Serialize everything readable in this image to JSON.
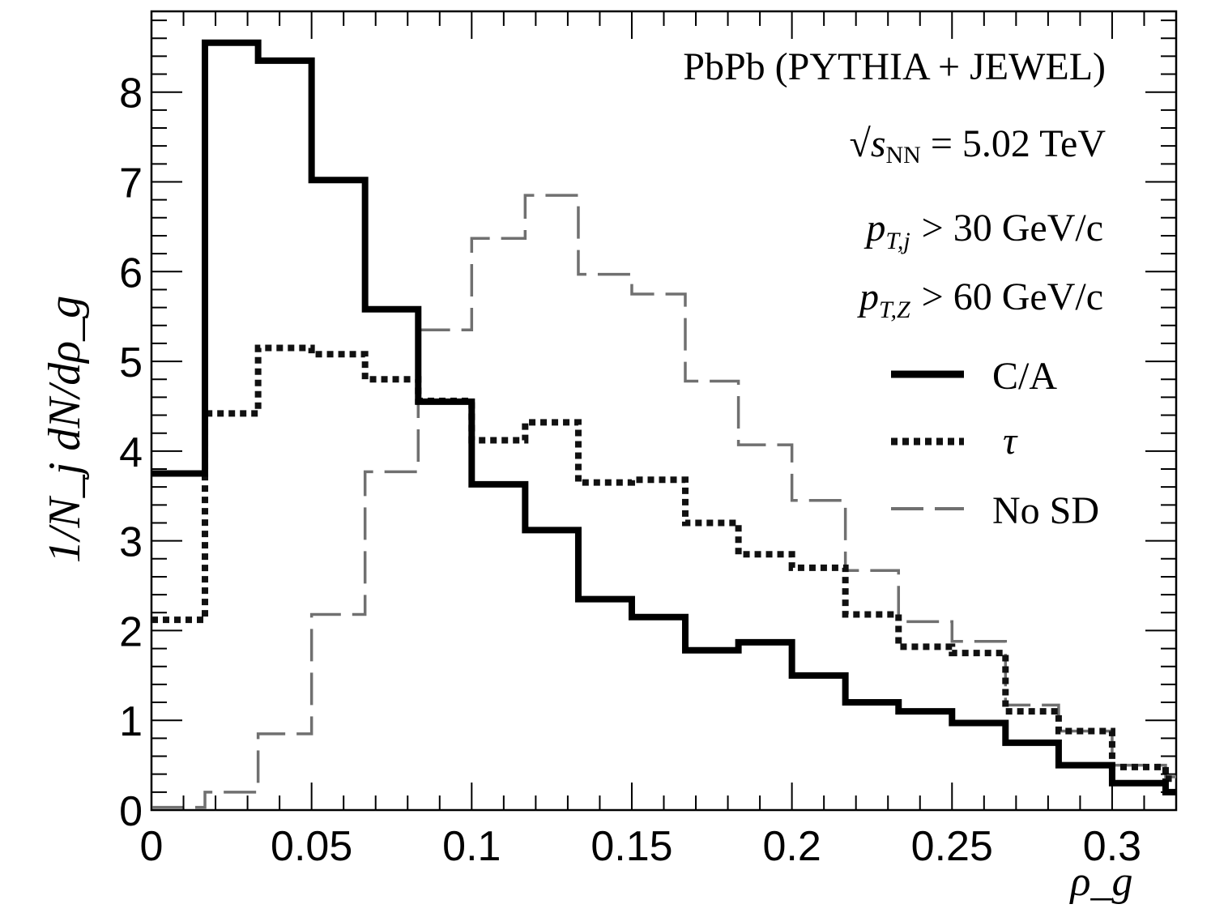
{
  "chart_data": {
    "type": "step",
    "title": "",
    "xlabel": "ρ_g",
    "ylabel": "1/N_j dN/dρ_g",
    "xlim": [
      0,
      0.32
    ],
    "ylim": [
      0,
      8.9
    ],
    "grid": false,
    "x_ticks": [
      0,
      0.05,
      0.1,
      0.15,
      0.2,
      0.25,
      0.3
    ],
    "x_tick_labels": [
      "0",
      "0.05",
      "0.1",
      "0.15",
      "0.2",
      "0.25",
      "0.3"
    ],
    "y_ticks": [
      0,
      1,
      2,
      3,
      4,
      5,
      6,
      7,
      8
    ],
    "y_tick_labels": [
      "0",
      "1",
      "2",
      "3",
      "4",
      "5",
      "6",
      "7",
      "8"
    ],
    "bin_edges": [
      0,
      0.0167,
      0.0333,
      0.05,
      0.0667,
      0.0833,
      0.1,
      0.1167,
      0.1333,
      0.15,
      0.1667,
      0.1833,
      0.2,
      0.2167,
      0.2333,
      0.25,
      0.2667,
      0.2833,
      0.3,
      0.3167,
      0.32
    ],
    "series": [
      {
        "name": "C/A",
        "style": "solid",
        "values": [
          3.75,
          8.55,
          8.35,
          7.02,
          5.58,
          4.55,
          3.63,
          3.12,
          2.35,
          2.15,
          1.78,
          1.87,
          1.5,
          1.2,
          1.1,
          0.97,
          0.75,
          0.5,
          0.3,
          0.2
        ]
      },
      {
        "name": "τ",
        "style": "dotted",
        "values": [
          2.12,
          4.42,
          5.15,
          5.08,
          4.8,
          4.56,
          4.12,
          4.32,
          3.65,
          3.68,
          3.2,
          2.85,
          2.7,
          2.18,
          1.82,
          1.75,
          1.1,
          0.88,
          0.48,
          0.35
        ]
      },
      {
        "name": "No SD",
        "style": "dashed",
        "values": [
          0.03,
          0.2,
          0.85,
          2.18,
          3.77,
          5.35,
          6.37,
          6.85,
          5.97,
          5.75,
          4.78,
          4.07,
          3.45,
          2.67,
          2.1,
          1.88,
          1.17,
          0.88,
          0.5,
          0.37
        ]
      }
    ],
    "annotations": {
      "line1": "PbPb (PYTHIA + JEWEL)",
      "energy_prefix": "√s",
      "energy_sub": "NN",
      "energy_value": "= 5.02 TeV",
      "pt_jet_p": "p",
      "pt_jet_sub": "T,j",
      "pt_jet_value": "> 30 GeV/c",
      "pt_z_p": "p",
      "pt_z_sub": "T,Z",
      "pt_z_value": "> 60 GeV/c"
    },
    "legend_position": "right",
    "colors": {
      "C/A": "#000000",
      "τ": "#111111",
      "No SD": "#707070"
    }
  }
}
